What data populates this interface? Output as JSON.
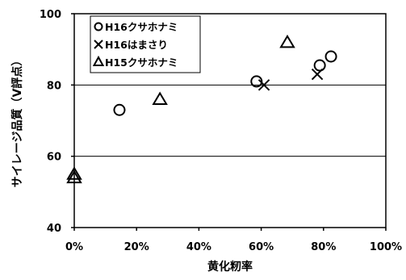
{
  "chart_data": {
    "type": "scatter",
    "title": "",
    "xlabel": "黄化籾率",
    "ylabel": "サイレージ品質（V評点）",
    "xlim": [
      0,
      100
    ],
    "ylim": [
      40,
      100
    ],
    "xticks": [
      0,
      20,
      40,
      60,
      80,
      100
    ],
    "xtick_labels": [
      "0%",
      "20%",
      "40%",
      "60%",
      "80%",
      "100%"
    ],
    "yticks": [
      40,
      60,
      80,
      100
    ],
    "ytick_labels": [
      "40",
      "60",
      "80",
      "100"
    ],
    "grid": "horizontal",
    "legend": "top-left",
    "series": [
      {
        "name": "H16クサホナミ",
        "marker": "circle",
        "points": [
          [
            14.5,
            73
          ],
          [
            58.5,
            81
          ],
          [
            78.8,
            85.5
          ],
          [
            82.4,
            88
          ]
        ]
      },
      {
        "name": "H16はまさり",
        "marker": "cross",
        "points": [
          [
            60.9,
            80
          ],
          [
            78,
            83
          ]
        ]
      },
      {
        "name": "H15クサホナミ",
        "marker": "triangle",
        "points": [
          [
            0,
            54
          ],
          [
            0,
            55
          ],
          [
            27.5,
            76
          ],
          [
            68.4,
            92
          ]
        ]
      }
    ]
  }
}
